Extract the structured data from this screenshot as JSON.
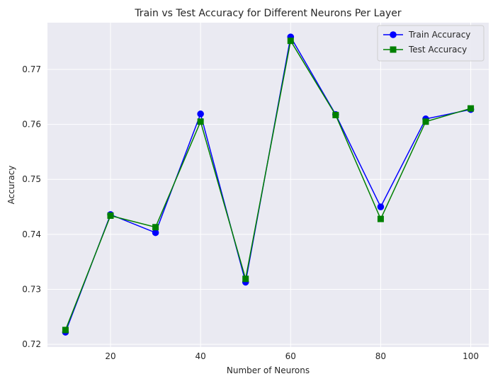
{
  "chart_data": {
    "type": "line",
    "title": "Train vs Test Accuracy for Different Neurons Per Layer",
    "xlabel": "Number of Neurons",
    "ylabel": "Accuracy",
    "x": [
      10,
      20,
      30,
      40,
      50,
      60,
      70,
      80,
      90,
      100
    ],
    "xlim": [
      6,
      104
    ],
    "ylim": [
      0.7195,
      0.7785
    ],
    "xticks": [
      20,
      40,
      60,
      80,
      100
    ],
    "yticks": [
      0.72,
      0.73,
      0.74,
      0.75,
      0.76,
      0.77
    ],
    "xtick_labels": [
      "20",
      "40",
      "60",
      "80",
      "100"
    ],
    "ytick_labels": [
      "0.72",
      "0.73",
      "0.74",
      "0.75",
      "0.76",
      "0.77"
    ],
    "grid": true,
    "legend_position": "top-right",
    "series": [
      {
        "name": "Train Accuracy",
        "color": "#0000ff",
        "marker": "circle",
        "values": [
          0.7222,
          0.7436,
          0.7403,
          0.7619,
          0.7313,
          0.7759,
          0.7618,
          0.745,
          0.761,
          0.7627
        ]
      },
      {
        "name": "Test Accuracy",
        "color": "#008000",
        "marker": "square",
        "values": [
          0.7226,
          0.7434,
          0.7413,
          0.7605,
          0.7319,
          0.7752,
          0.7617,
          0.7428,
          0.7605,
          0.7629
        ]
      }
    ]
  },
  "style": {
    "plot_background": "#eaeaf2",
    "grid_color": "#ffffff"
  }
}
